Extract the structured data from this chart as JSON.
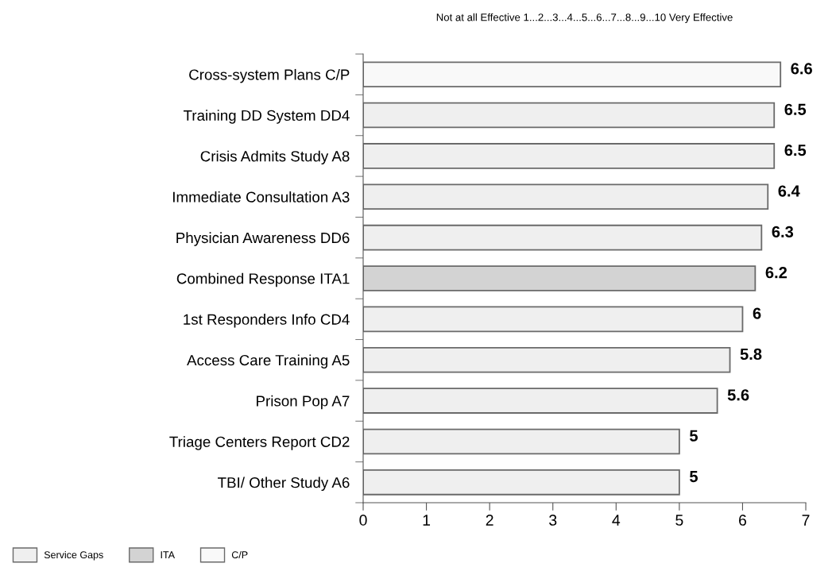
{
  "chart_data": {
    "type": "bar",
    "orientation": "horizontal",
    "stacked": true,
    "title": "Not at all Effective 1...2...3...4...5...6...7...8...9...10 Very Effective",
    "categories": [
      "Cross-system Plans C/P",
      "Training DD System DD4",
      "Crisis Admits Study A8",
      "Immediate Consultation A3",
      "Physician Awareness DD6",
      "Combined Response ITA1",
      "1st Responders Info CD4",
      "Access Care Training A5",
      "Prison Pop A7",
      "Triage Centers Report CD2",
      "TBI/ Other Study A6"
    ],
    "series": [
      {
        "name": "Service Gaps",
        "color": "#efefef",
        "values": [
          null,
          6.5,
          6.5,
          6.4,
          6.3,
          null,
          6,
          5.8,
          5.6,
          5,
          5
        ]
      },
      {
        "name": "ITA",
        "color": "#d3d3d3",
        "values": [
          null,
          null,
          null,
          null,
          null,
          6.2,
          null,
          null,
          null,
          null,
          null
        ]
      },
      {
        "name": "C/P",
        "color": "#f9f9f9",
        "values": [
          6.6,
          null,
          null,
          null,
          null,
          null,
          null,
          null,
          null,
          null,
          null
        ]
      }
    ],
    "xlim": [
      0,
      7
    ],
    "xticks": [
      0,
      1,
      2,
      3,
      4,
      5,
      6,
      7
    ],
    "data_labels": true,
    "grid": false,
    "legend": "bottom left"
  }
}
